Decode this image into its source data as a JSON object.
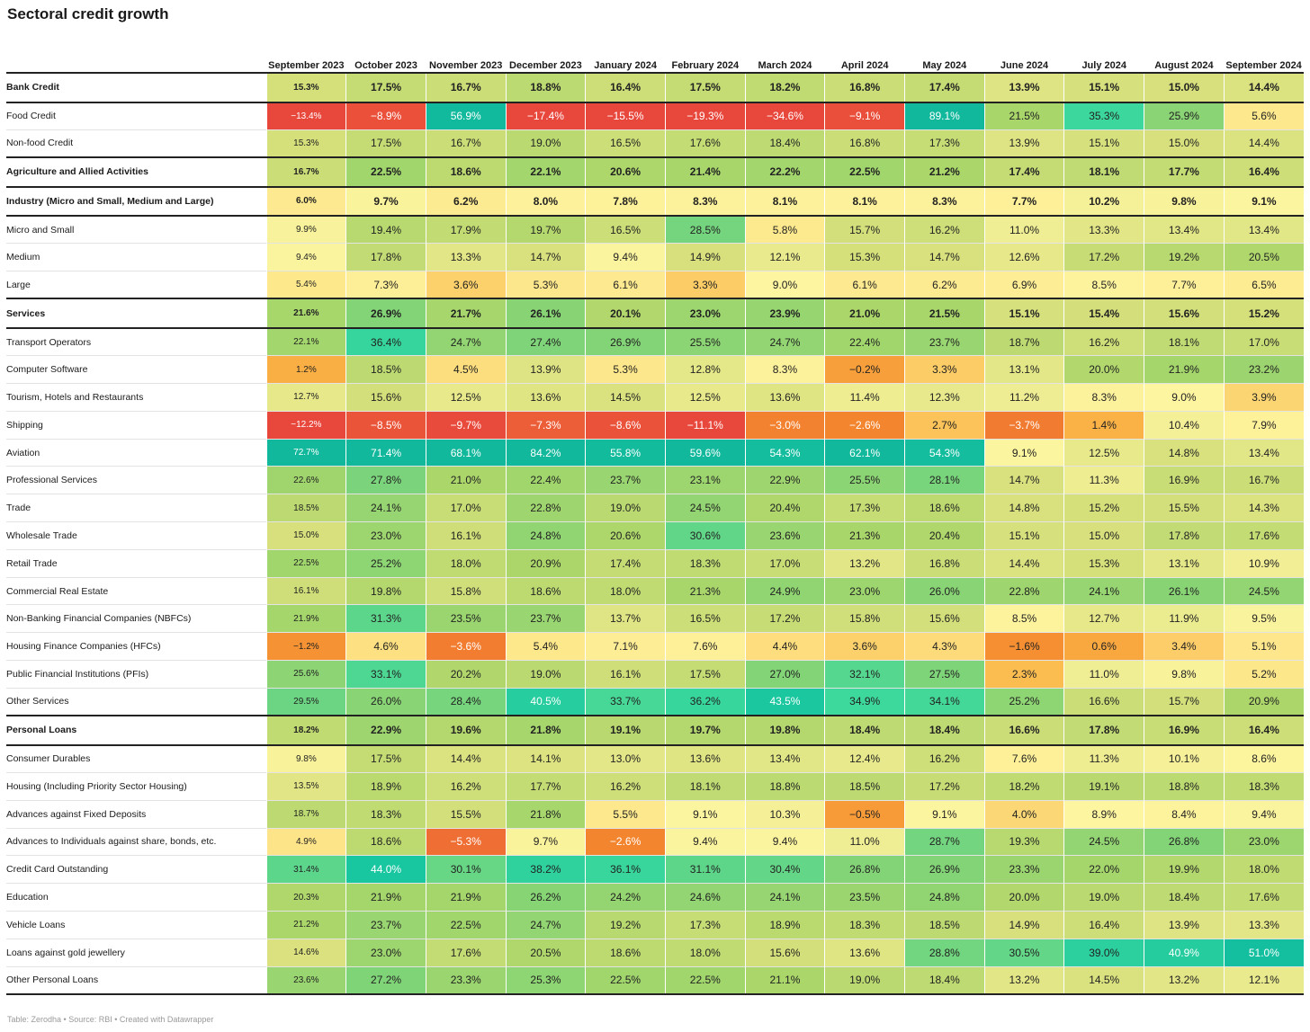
{
  "chart_data": {
    "type": "table",
    "title": "Sectoral credit growth",
    "columns": [
      "September 2023",
      "October 2023",
      "November 2023",
      "December 2023",
      "January 2024",
      "February 2024",
      "March 2024",
      "April 2024",
      "May 2024",
      "June 2024",
      "July 2024",
      "August 2024",
      "September 2024"
    ],
    "rows": [
      {
        "label": "Bank Credit",
        "values": [
          15.3,
          17.5,
          16.7,
          18.8,
          16.4,
          17.5,
          18.2,
          16.8,
          17.4,
          13.9,
          15.1,
          15.0,
          14.4
        ],
        "bold": true
      },
      {
        "label": "Food Credit",
        "values": [
          -13.4,
          -8.9,
          56.9,
          -17.4,
          -15.5,
          -19.3,
          -34.6,
          -9.1,
          89.1,
          21.5,
          35.3,
          25.9,
          5.6
        ]
      },
      {
        "label": "Non-food Credit",
        "values": [
          15.3,
          17.5,
          16.7,
          19.0,
          16.5,
          17.6,
          18.4,
          16.8,
          17.3,
          13.9,
          15.1,
          15.0,
          14.4
        ]
      },
      {
        "label": "Agriculture and Allied Activities",
        "values": [
          16.7,
          22.5,
          18.6,
          22.1,
          20.6,
          21.4,
          22.2,
          22.5,
          21.2,
          17.4,
          18.1,
          17.7,
          16.4
        ],
        "bold": true
      },
      {
        "label": "Industry (Micro and Small, Medium and Large)",
        "values": [
          6.0,
          9.7,
          6.2,
          8.0,
          7.8,
          8.3,
          8.1,
          8.1,
          8.3,
          7.7,
          10.2,
          9.8,
          9.1
        ],
        "bold": true
      },
      {
        "label": "Micro and Small",
        "values": [
          9.9,
          19.4,
          17.9,
          19.7,
          16.5,
          28.5,
          5.8,
          15.7,
          16.2,
          11.0,
          13.3,
          13.4,
          13.4
        ]
      },
      {
        "label": "Medium",
        "values": [
          9.4,
          17.8,
          13.3,
          14.7,
          9.4,
          14.9,
          12.1,
          15.3,
          14.7,
          12.6,
          17.2,
          19.2,
          20.5
        ]
      },
      {
        "label": "Large",
        "values": [
          5.4,
          7.3,
          3.6,
          5.3,
          6.1,
          3.3,
          9.0,
          6.1,
          6.2,
          6.9,
          8.5,
          7.7,
          6.5
        ]
      },
      {
        "label": "Services",
        "values": [
          21.6,
          26.9,
          21.7,
          26.1,
          20.1,
          23.0,
          23.9,
          21.0,
          21.5,
          15.1,
          15.4,
          15.6,
          15.2
        ],
        "bold": true
      },
      {
        "label": "Transport Operators",
        "values": [
          22.1,
          36.4,
          24.7,
          27.4,
          26.9,
          25.5,
          24.7,
          22.4,
          23.7,
          18.7,
          16.2,
          18.1,
          17.0
        ]
      },
      {
        "label": "Computer Software",
        "values": [
          1.2,
          18.5,
          4.5,
          13.9,
          5.3,
          12.8,
          8.3,
          -0.2,
          3.3,
          13.1,
          20.0,
          21.9,
          23.2
        ]
      },
      {
        "label": "Tourism, Hotels and Restaurants",
        "values": [
          12.7,
          15.6,
          12.5,
          13.6,
          14.5,
          12.5,
          13.6,
          11.4,
          12.3,
          11.2,
          8.3,
          9.0,
          3.9
        ]
      },
      {
        "label": "Shipping",
        "values": [
          -12.2,
          -8.5,
          -9.7,
          -7.3,
          -8.6,
          -11.1,
          -3.0,
          -2.6,
          2.7,
          -3.7,
          1.4,
          10.4,
          7.9
        ]
      },
      {
        "label": "Aviation",
        "values": [
          72.7,
          71.4,
          68.1,
          84.2,
          55.8,
          59.6,
          54.3,
          62.1,
          54.3,
          9.1,
          12.5,
          14.8,
          13.4
        ]
      },
      {
        "label": "Professional Services",
        "values": [
          22.6,
          27.8,
          21.0,
          22.4,
          23.7,
          23.1,
          22.9,
          25.5,
          28.1,
          14.7,
          11.3,
          16.9,
          16.7
        ]
      },
      {
        "label": "Trade",
        "values": [
          18.5,
          24.1,
          17.0,
          22.8,
          19.0,
          24.5,
          20.4,
          17.3,
          18.6,
          14.8,
          15.2,
          15.5,
          14.3
        ]
      },
      {
        "label": "Wholesale Trade",
        "values": [
          15.0,
          23.0,
          16.1,
          24.8,
          20.6,
          30.6,
          23.6,
          21.3,
          20.4,
          15.1,
          15.0,
          17.8,
          17.6
        ]
      },
      {
        "label": "Retail Trade",
        "values": [
          22.5,
          25.2,
          18.0,
          20.9,
          17.4,
          18.3,
          17.0,
          13.2,
          16.8,
          14.4,
          15.3,
          13.1,
          10.9
        ]
      },
      {
        "label": "Commercial Real Estate",
        "values": [
          16.1,
          19.8,
          15.8,
          18.6,
          18.0,
          21.3,
          24.9,
          23.0,
          26.0,
          22.8,
          24.1,
          26.1,
          24.5
        ]
      },
      {
        "label": "Non-Banking Financial Companies (NBFCs)",
        "values": [
          21.9,
          31.3,
          23.5,
          23.7,
          13.7,
          16.5,
          17.2,
          15.8,
          15.6,
          8.5,
          12.7,
          11.9,
          9.5
        ]
      },
      {
        "label": "Housing Finance Companies (HFCs)",
        "values": [
          -1.2,
          4.6,
          -3.6,
          5.4,
          7.1,
          7.6,
          4.4,
          3.6,
          4.3,
          -1.6,
          0.6,
          3.4,
          5.1
        ]
      },
      {
        "label": "Public Financial Institutions (PFIs)",
        "values": [
          25.6,
          33.1,
          20.2,
          19.0,
          16.1,
          17.5,
          27.0,
          32.1,
          27.5,
          2.3,
          11.0,
          9.8,
          5.2
        ]
      },
      {
        "label": "Other Services",
        "values": [
          29.5,
          26.0,
          28.4,
          40.5,
          33.7,
          36.2,
          43.5,
          34.9,
          34.1,
          25.2,
          16.6,
          15.7,
          20.9
        ]
      },
      {
        "label": "Personal Loans",
        "values": [
          18.2,
          22.9,
          19.6,
          21.8,
          19.1,
          19.7,
          19.8,
          18.4,
          18.4,
          16.6,
          17.8,
          16.9,
          16.4
        ],
        "bold": true
      },
      {
        "label": "Consumer Durables",
        "values": [
          9.8,
          17.5,
          14.4,
          14.1,
          13.0,
          13.6,
          13.4,
          12.4,
          16.2,
          7.6,
          11.3,
          10.1,
          8.6
        ]
      },
      {
        "label": "Housing (Including Priority Sector Housing)",
        "values": [
          13.5,
          18.9,
          16.2,
          17.7,
          16.2,
          18.1,
          18.8,
          18.5,
          17.2,
          18.2,
          19.1,
          18.8,
          18.3
        ]
      },
      {
        "label": "Advances against Fixed Deposits",
        "values": [
          18.7,
          18.3,
          15.5,
          21.8,
          5.5,
          9.1,
          10.3,
          -0.5,
          9.1,
          4.0,
          8.9,
          8.4,
          9.4
        ]
      },
      {
        "label": "Advances to Individuals against share, bonds, etc.",
        "values": [
          4.9,
          18.6,
          -5.3,
          9.7,
          -2.6,
          9.4,
          9.4,
          11.0,
          28.7,
          19.3,
          24.5,
          26.8,
          23.0
        ]
      },
      {
        "label": "Credit Card Outstanding",
        "values": [
          31.4,
          44.0,
          30.1,
          38.2,
          36.1,
          31.1,
          30.4,
          26.8,
          26.9,
          23.3,
          22.0,
          19.9,
          18.0
        ]
      },
      {
        "label": "Education",
        "values": [
          20.3,
          21.9,
          21.9,
          26.2,
          24.2,
          24.6,
          24.1,
          23.5,
          24.8,
          20.0,
          19.0,
          18.4,
          17.6
        ]
      },
      {
        "label": "Vehicle Loans",
        "values": [
          21.2,
          23.7,
          22.5,
          24.7,
          19.2,
          17.3,
          18.9,
          18.3,
          18.5,
          14.9,
          16.4,
          13.9,
          13.3
        ]
      },
      {
        "label": "Loans against gold jewellery",
        "values": [
          14.6,
          23.0,
          17.6,
          20.5,
          18.6,
          18.0,
          15.6,
          13.6,
          28.8,
          30.5,
          39.0,
          40.9,
          51.0
        ]
      },
      {
        "label": "Other Personal Loans",
        "values": [
          23.6,
          27.2,
          23.3,
          25.3,
          22.5,
          22.5,
          21.1,
          19.0,
          18.4,
          13.2,
          14.5,
          13.2,
          12.1
        ]
      }
    ],
    "value_suffix": "%",
    "color_scale": {
      "stops": [
        {
          "value": -10,
          "color": "#e8473c"
        },
        {
          "value": -2,
          "color": "#f48a2e"
        },
        {
          "value": 2,
          "color": "#fbb84a"
        },
        {
          "value": 5,
          "color": "#fde68a"
        },
        {
          "value": 9,
          "color": "#fdf5a0"
        },
        {
          "value": 15,
          "color": "#d7e07c"
        },
        {
          "value": 21,
          "color": "#abd66a"
        },
        {
          "value": 27,
          "color": "#82d477"
        },
        {
          "value": 35,
          "color": "#3cd89c"
        },
        {
          "value": 45,
          "color": "#14c4a0"
        },
        {
          "value": 60,
          "color": "#12b89c"
        }
      ]
    }
  },
  "footer": {
    "source": "Table: Zerodha • Source: RBI • Created with Datawrapper"
  }
}
